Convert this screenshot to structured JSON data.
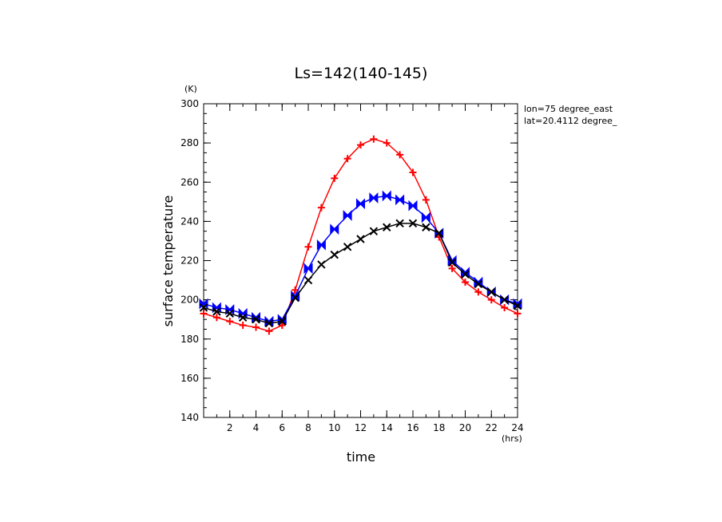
{
  "chart_data": {
    "type": "line",
    "title": "Ls=142(140-145)",
    "xlabel": "time",
    "ylabel": "surface temperature",
    "x_unit": "(hrs)",
    "y_unit": "(K)",
    "annotations": [
      "lon=75 degree_east",
      "lat=20.4112 degree_"
    ],
    "xlim": [
      0,
      24
    ],
    "ylim": [
      140,
      300
    ],
    "x_ticks": [
      2,
      4,
      6,
      8,
      10,
      12,
      14,
      16,
      18,
      20,
      22,
      24
    ],
    "y_ticks": [
      140,
      160,
      180,
      200,
      220,
      240,
      260,
      280,
      300
    ],
    "grid": false,
    "x": [
      0,
      1,
      2,
      3,
      4,
      5,
      6,
      7,
      8,
      9,
      10,
      11,
      12,
      13,
      14,
      15,
      16,
      17,
      18,
      19,
      20,
      21,
      22,
      23,
      24
    ],
    "series": [
      {
        "color": "#ff0000",
        "marker": "plus",
        "values": [
          193,
          191,
          189,
          187,
          186,
          184,
          187,
          205,
          227,
          247,
          262,
          272,
          279,
          282,
          280,
          274,
          265,
          251,
          232,
          216,
          209,
          204,
          200,
          196,
          193
        ]
      },
      {
        "color": "#0000ff",
        "marker": "bowtie",
        "values": [
          198,
          196,
          195,
          193,
          191,
          189,
          190,
          202,
          216,
          228,
          236,
          243,
          249,
          252,
          253,
          251,
          248,
          242,
          234,
          220,
          214,
          209,
          204,
          200,
          198
        ]
      },
      {
        "color": "#000000",
        "marker": "x",
        "values": [
          196,
          194,
          193,
          191,
          190,
          188,
          189,
          201,
          210,
          218,
          223,
          227,
          231,
          235,
          237,
          239,
          239,
          237,
          234,
          219,
          213,
          208,
          204,
          200,
          197
        ]
      }
    ]
  }
}
